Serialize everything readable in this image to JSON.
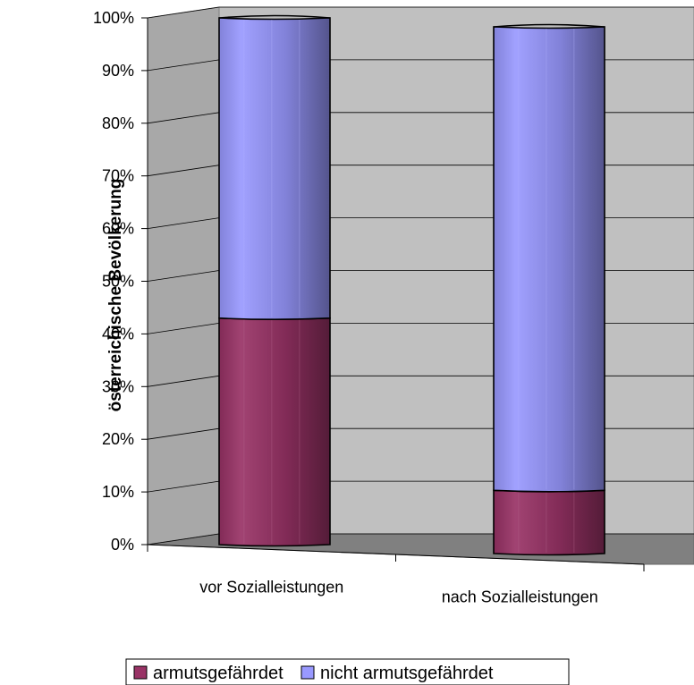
{
  "chart_data": {
    "type": "bar",
    "stacked": true,
    "ylabel": "österreichische Bevölkerung",
    "xlabel": "",
    "ylim": [
      0,
      100
    ],
    "y_unit": "%",
    "y_ticks": [
      "0%",
      "10%",
      "20%",
      "30%",
      "40%",
      "50%",
      "60%",
      "70%",
      "80%",
      "90%",
      "100%"
    ],
    "categories": [
      "vor Sozialleistungen",
      "nach Sozialleistungen"
    ],
    "series": [
      {
        "name": "armutsgefährdet",
        "values": [
          43,
          12
        ],
        "color": "#993366"
      },
      {
        "name": "nicht armutsgefährdet",
        "values": [
          57,
          88
        ],
        "color": "#9999FF"
      }
    ],
    "grid": true,
    "three_d": true,
    "legend_position": "bottom",
    "background_wall_color": "#C0C0C0",
    "floor_color": "#808080"
  }
}
